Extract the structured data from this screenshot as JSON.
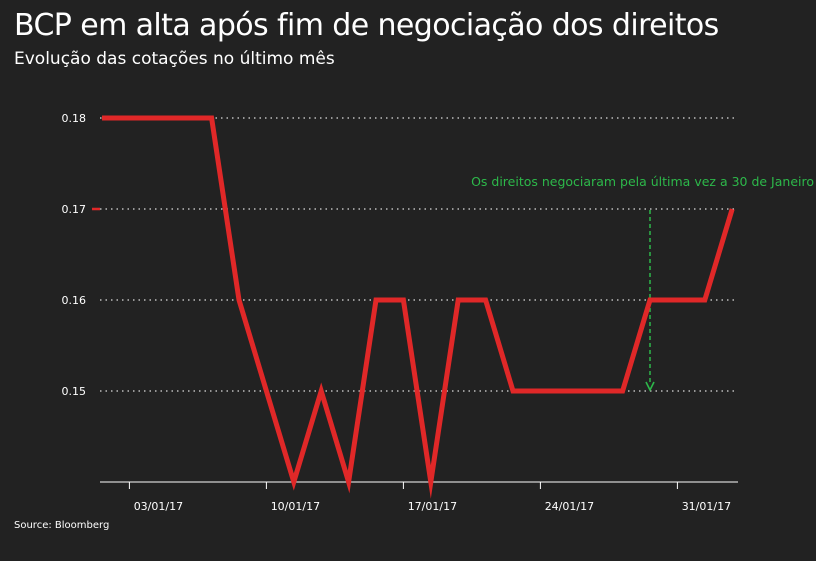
{
  "title": "BCP em alta após fim de negociação dos direitos",
  "subtitle": "Evolução das cotações no último mês",
  "source": "Source: Bloomberg",
  "colors": {
    "background": "#222222",
    "line": "#e02828",
    "annotation": "#2db84a",
    "grid": "#dddddd",
    "text": "#ffffff"
  },
  "chart_data": {
    "type": "line",
    "x_tick_labels": [
      "03/01/17",
      "10/01/17",
      "17/01/17",
      "24/01/17",
      "31/01/17"
    ],
    "y_tick_labels": [
      "0.18",
      "0.17",
      "0.16",
      "0.15"
    ],
    "y_ticks": [
      0.18,
      0.17,
      0.16,
      0.15
    ],
    "ylim": [
      0.14,
      0.18
    ],
    "grid": "horizontal dotted",
    "series": [
      {
        "x": [
          "02/01/17",
          "03/01/17",
          "04/01/17",
          "05/01/17",
          "06/01/17",
          "09/01/17",
          "10/01/17",
          "11/01/17",
          "12/01/17",
          "13/01/17",
          "16/01/17",
          "17/01/17",
          "18/01/17",
          "19/01/17",
          "20/01/17",
          "23/01/17",
          "24/01/17",
          "25/01/17",
          "26/01/17",
          "27/01/17",
          "30/01/17",
          "31/01/17",
          "01/02/17",
          "02/02/17",
          "03/02/17"
        ],
        "values": [
          0.18,
          0.18,
          0.18,
          0.18,
          0.18,
          0.16,
          0.15,
          0.14,
          0.15,
          0.14,
          0.16,
          0.16,
          0.14,
          0.16,
          0.16,
          0.15,
          0.15,
          0.15,
          0.15,
          0.15,
          0.16,
          0.16,
          0.16,
          0.17,
          null
        ]
      }
    ],
    "annotation": {
      "text": "Os direitos negociaram pela última vez a 30 de Janeiro",
      "points_to": {
        "x": "30/01/17",
        "y": 0.15
      }
    },
    "last_value_marker": 0.17
  }
}
